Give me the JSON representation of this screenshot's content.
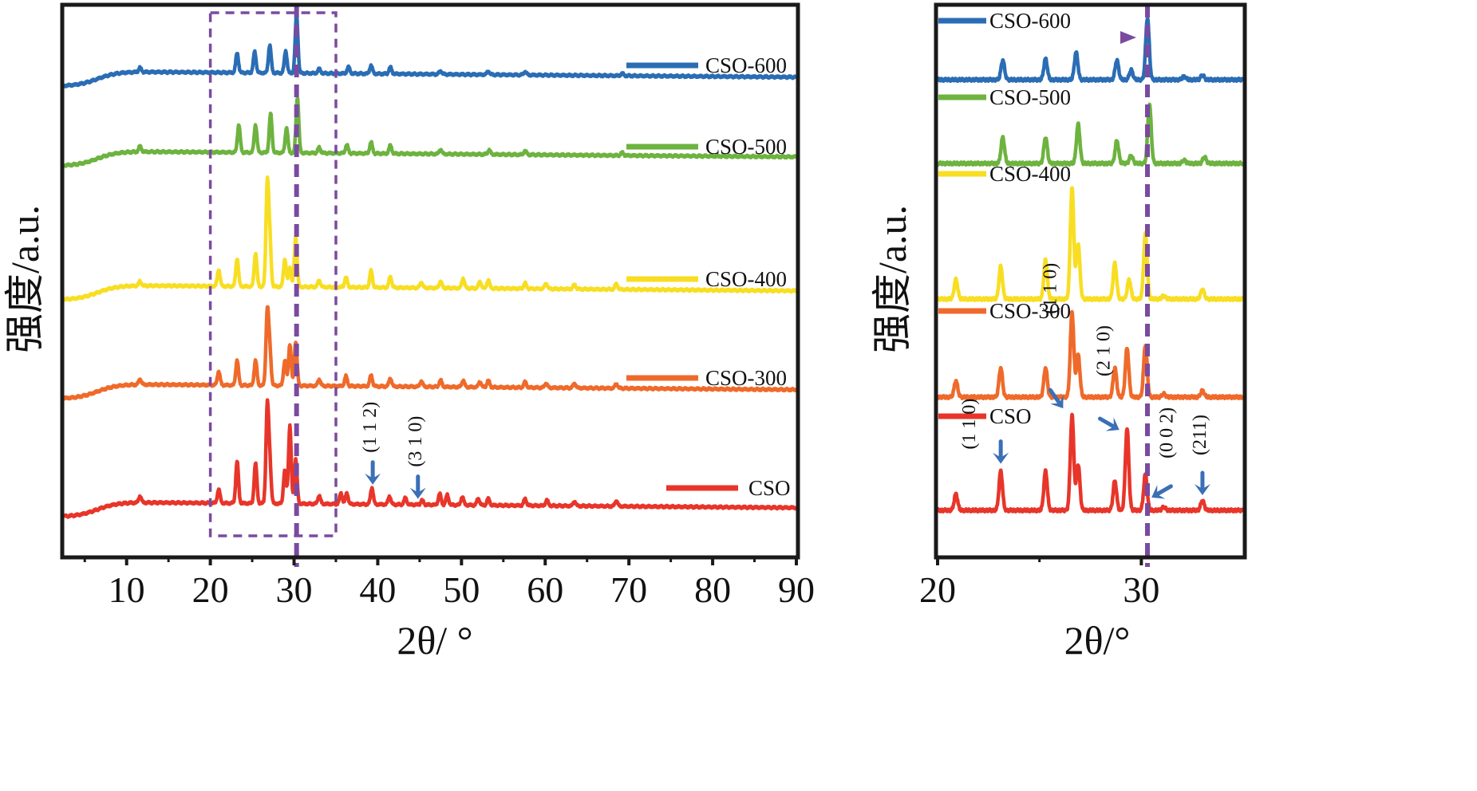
{
  "chart_data": [
    {
      "id": "main",
      "type": "line",
      "title": "",
      "xlabel": "2θ/ °",
      "ylabel": "强度/a.u.",
      "xlim": [
        2.5,
        90
      ],
      "x_major_ticks": [
        10,
        20,
        30,
        40,
        50,
        60,
        70,
        80,
        90
      ],
      "x_minor_ticks": [
        5,
        15,
        25,
        35,
        45,
        55,
        65,
        75,
        85
      ],
      "tick_labels": [
        "10",
        "20",
        "30",
        "40",
        "50",
        "60",
        "70",
        "80",
        "90"
      ],
      "grid": false,
      "legend": "right, beside each trace",
      "series": [
        {
          "name": "CSO-600",
          "color": "#2a6db4",
          "offset": 4,
          "peaks": [
            [
              11.6,
              0.08
            ],
            [
              23.2,
              0.35
            ],
            [
              25.3,
              0.38
            ],
            [
              27.1,
              0.5
            ],
            [
              29.0,
              0.4
            ],
            [
              30.3,
              1.05
            ],
            [
              33.0,
              0.08
            ],
            [
              36.5,
              0.12
            ],
            [
              39.2,
              0.15
            ],
            [
              41.5,
              0.12
            ],
            [
              47.5,
              0.06
            ],
            [
              53.2,
              0.06
            ],
            [
              57.6,
              0.06
            ],
            [
              69.2,
              0.04
            ]
          ]
        },
        {
          "name": "CSO-500",
          "color": "#6db33f",
          "offset": 3,
          "peaks": [
            [
              11.6,
              0.1
            ],
            [
              23.4,
              0.5
            ],
            [
              25.4,
              0.5
            ],
            [
              27.2,
              0.7
            ],
            [
              29.1,
              0.45
            ],
            [
              30.4,
              1.0
            ],
            [
              33.0,
              0.1
            ],
            [
              36.3,
              0.15
            ],
            [
              39.2,
              0.2
            ],
            [
              41.5,
              0.15
            ],
            [
              47.5,
              0.08
            ],
            [
              53.3,
              0.08
            ],
            [
              57.6,
              0.07
            ],
            [
              69.2,
              0.05
            ]
          ]
        },
        {
          "name": "CSO-400",
          "color": "#f8de22",
          "offset": 2,
          "peaks": [
            [
              11.6,
              0.08
            ],
            [
              21.0,
              0.3
            ],
            [
              23.2,
              0.5
            ],
            [
              25.4,
              0.6
            ],
            [
              26.8,
              1.8
            ],
            [
              27.1,
              0.8
            ],
            [
              28.9,
              0.5
            ],
            [
              29.5,
              0.35
            ],
            [
              30.2,
              0.9
            ],
            [
              33.0,
              0.12
            ],
            [
              36.2,
              0.18
            ],
            [
              39.2,
              0.3
            ],
            [
              41.5,
              0.2
            ],
            [
              45.2,
              0.1
            ],
            [
              47.5,
              0.12
            ],
            [
              50.2,
              0.18
            ],
            [
              52.2,
              0.12
            ],
            [
              53.2,
              0.15
            ],
            [
              57.6,
              0.1
            ],
            [
              60.1,
              0.1
            ],
            [
              63.5,
              0.08
            ],
            [
              68.5,
              0.1
            ]
          ]
        },
        {
          "name": "CSO-300",
          "color": "#ef6a2a",
          "offset": 1,
          "peaks": [
            [
              11.6,
              0.1
            ],
            [
              21.0,
              0.25
            ],
            [
              23.2,
              0.45
            ],
            [
              25.4,
              0.45
            ],
            [
              26.8,
              1.3
            ],
            [
              27.1,
              0.6
            ],
            [
              28.9,
              0.45
            ],
            [
              29.5,
              0.75
            ],
            [
              30.2,
              0.8
            ],
            [
              33.0,
              0.12
            ],
            [
              36.2,
              0.18
            ],
            [
              39.2,
              0.2
            ],
            [
              41.5,
              0.15
            ],
            [
              45.2,
              0.1
            ],
            [
              47.5,
              0.12
            ],
            [
              50.2,
              0.12
            ],
            [
              52.2,
              0.1
            ],
            [
              53.2,
              0.12
            ],
            [
              57.6,
              0.1
            ],
            [
              60.1,
              0.08
            ],
            [
              63.5,
              0.08
            ],
            [
              68.5,
              0.08
            ]
          ]
        },
        {
          "name": "CSO",
          "color": "#e8352a",
          "offset": 0,
          "peaks": [
            [
              11.6,
              0.12
            ],
            [
              21.0,
              0.25
            ],
            [
              23.2,
              0.75
            ],
            [
              25.4,
              0.72
            ],
            [
              26.8,
              1.7
            ],
            [
              27.1,
              0.7
            ],
            [
              28.9,
              0.6
            ],
            [
              29.5,
              1.4
            ],
            [
              30.2,
              0.8
            ],
            [
              33.0,
              0.15
            ],
            [
              35.6,
              0.2
            ],
            [
              36.3,
              0.2
            ],
            [
              39.3,
              0.3
            ],
            [
              41.4,
              0.15
            ],
            [
              43.3,
              0.12
            ],
            [
              45.3,
              0.08
            ],
            [
              47.4,
              0.2
            ],
            [
              48.3,
              0.18
            ],
            [
              50.1,
              0.15
            ],
            [
              52.0,
              0.12
            ],
            [
              53.2,
              0.12
            ],
            [
              57.6,
              0.12
            ],
            [
              60.2,
              0.1
            ],
            [
              63.5,
              0.08
            ],
            [
              68.5,
              0.1
            ]
          ]
        }
      ],
      "annotations": [
        {
          "label": "(1 1 2)",
          "x": 39.4,
          "series": "CSO",
          "color": "#3b6fb6"
        },
        {
          "label": "(3 1 0)",
          "x": 44.8,
          "series": "CSO",
          "color": "#3b6fb6"
        }
      ],
      "zoom_box": {
        "x_range": [
          20,
          35
        ],
        "color": "#7a4aa0",
        "style": "dashed"
      },
      "reference_line": {
        "x": 30.3,
        "color": "#7a4aa0",
        "style": "dashed"
      },
      "arrow": {
        "from": "main zoom box",
        "to": "inset at 30.3°",
        "color": "#7a4aa0"
      }
    },
    {
      "id": "inset",
      "type": "line",
      "title": "",
      "xlabel": "2θ/°",
      "ylabel": "强度/a.u.",
      "xlim": [
        20,
        35
      ],
      "x_major_ticks": [
        20,
        30
      ],
      "x_minor_ticks": [
        25
      ],
      "tick_labels": [
        "20",
        "30"
      ],
      "grid": false,
      "legend": "left, above each trace",
      "series": [
        {
          "name": "CSO-600",
          "color": "#2a6db4",
          "offset": 4,
          "peaks": [
            [
              23.2,
              0.3
            ],
            [
              25.3,
              0.32
            ],
            [
              26.8,
              0.42
            ],
            [
              28.8,
              0.3
            ],
            [
              29.5,
              0.15
            ],
            [
              30.3,
              0.95
            ],
            [
              32.1,
              0.05
            ],
            [
              33.0,
              0.07
            ]
          ]
        },
        {
          "name": "CSO-500",
          "color": "#6db33f",
          "offset": 3,
          "peaks": [
            [
              23.2,
              0.4
            ],
            [
              25.3,
              0.4
            ],
            [
              26.9,
              0.6
            ],
            [
              28.8,
              0.35
            ],
            [
              29.5,
              0.12
            ],
            [
              30.4,
              0.9
            ],
            [
              32.1,
              0.05
            ],
            [
              33.1,
              0.1
            ]
          ]
        },
        {
          "name": "CSO-400",
          "color": "#f8de22",
          "offset": 2,
          "peaks": [
            [
              20.9,
              0.3
            ],
            [
              23.1,
              0.5
            ],
            [
              25.3,
              0.6
            ],
            [
              26.6,
              1.7
            ],
            [
              26.9,
              0.85
            ],
            [
              28.7,
              0.55
            ],
            [
              29.4,
              0.3
            ],
            [
              30.2,
              1.0
            ],
            [
              31.1,
              0.05
            ],
            [
              33.0,
              0.15
            ]
          ]
        },
        {
          "name": "CSO-300",
          "color": "#ef6a2a",
          "offset": 1,
          "peaks": [
            [
              20.9,
              0.25
            ],
            [
              23.1,
              0.45
            ],
            [
              25.3,
              0.45
            ],
            [
              26.6,
              1.3
            ],
            [
              26.9,
              0.65
            ],
            [
              28.7,
              0.45
            ],
            [
              29.3,
              0.75
            ],
            [
              30.2,
              0.8
            ],
            [
              31.1,
              0.05
            ],
            [
              33.0,
              0.1
            ]
          ]
        },
        {
          "name": "CSO",
          "color": "#e8352a",
          "offset": 0,
          "peaks": [
            [
              20.9,
              0.25
            ],
            [
              23.1,
              0.6
            ],
            [
              25.3,
              0.6
            ],
            [
              26.6,
              1.45
            ],
            [
              26.9,
              0.7
            ],
            [
              28.7,
              0.45
            ],
            [
              29.3,
              1.25
            ],
            [
              30.2,
              0.55
            ],
            [
              31.1,
              0.05
            ],
            [
              33.0,
              0.15
            ]
          ]
        }
      ],
      "annotations": [
        {
          "label": "(1 1 0)",
          "x": 23.1,
          "series": "CSO",
          "color": "#3b6fb6"
        },
        {
          "label": "(1 1 0)",
          "x": 26.6,
          "series": "CSO",
          "color": "#3b6fb6"
        },
        {
          "label": "(2 1 0)",
          "x": 29.3,
          "series": "CSO",
          "color": "#3b6fb6"
        },
        {
          "label": "(0 0 2)",
          "x": 30.2,
          "series": "CSO",
          "color": "#3b6fb6"
        },
        {
          "label": "(211)",
          "x": 33.0,
          "series": "CSO",
          "color": "#3b6fb6"
        }
      ],
      "reference_line": {
        "x": 30.3,
        "color": "#7a4aa0",
        "style": "dashed"
      }
    }
  ]
}
